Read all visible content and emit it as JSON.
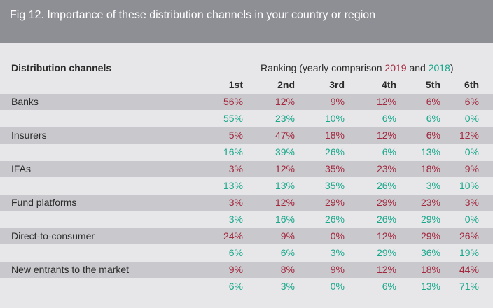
{
  "header": {
    "title": "Fig 12. Importance of these distribution channels in your country or region"
  },
  "table": {
    "label_header": "Distribution channels",
    "ranking_header": {
      "prefix": "Ranking (yearly comparison",
      "year_a": "2019",
      "joiner": "and",
      "year_b": "2018",
      "suffix": ")"
    },
    "columns": [
      "1st",
      "2nd",
      "3rd",
      "4th",
      "5th",
      "6th"
    ],
    "rows": [
      {
        "channel": "Banks",
        "first": [
          "56%",
          "12%",
          "9%",
          "12%",
          "6%",
          "6%"
        ],
        "second": [
          "55%",
          "23%",
          "10%",
          "6%",
          "6%",
          "0%"
        ]
      },
      {
        "channel": "Insurers",
        "first": [
          "5%",
          "47%",
          "18%",
          "12%",
          "6%",
          "12%"
        ],
        "second": [
          "16%",
          "39%",
          "26%",
          "6%",
          "13%",
          "0%"
        ]
      },
      {
        "channel": "IFAs",
        "first": [
          "3%",
          "12%",
          "35%",
          "23%",
          "18%",
          "9%"
        ],
        "second": [
          "13%",
          "13%",
          "35%",
          "26%",
          "3%",
          "10%"
        ]
      },
      {
        "channel": "Fund platforms",
        "first": [
          "3%",
          "12%",
          "29%",
          "29%",
          "23%",
          "3%"
        ],
        "second": [
          "3%",
          "16%",
          "26%",
          "26%",
          "29%",
          "0%"
        ]
      },
      {
        "channel": "Direct-to-consumer",
        "first": [
          "24%",
          "9%",
          "0%",
          "12%",
          "29%",
          "26%"
        ],
        "second": [
          "6%",
          "6%",
          "3%",
          "29%",
          "36%",
          "19%"
        ]
      },
      {
        "channel": "New entrants to the market",
        "first": [
          "9%",
          "8%",
          "9%",
          "12%",
          "18%",
          "44%"
        ],
        "second": [
          "6%",
          "3%",
          "0%",
          "6%",
          "13%",
          "71%"
        ]
      }
    ]
  }
}
